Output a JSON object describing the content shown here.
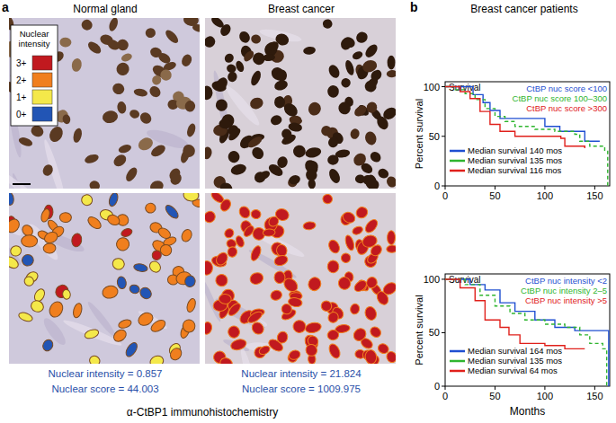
{
  "panel_a": {
    "label": "a",
    "columns": [
      "Normal gland",
      "Breast cancer"
    ],
    "legend_title": "Nuclear intensity",
    "legend": [
      {
        "label": "3+",
        "color": "#c1191f"
      },
      {
        "label": "2+",
        "color": "#f07f1e"
      },
      {
        "label": "1+",
        "color": "#f4e84a"
      },
      {
        "label": "0+",
        "color": "#2255b5"
      }
    ],
    "measurements": [
      [
        "Nuclear intensity = 0.857",
        "Nuclear score = 44.003"
      ],
      [
        "Nuclear intensity = 21.824",
        "Nuclear score = 1009.975"
      ]
    ],
    "caption": "α-CtBP1 immunohistochemistry"
  },
  "panel_b": {
    "label": "b",
    "title": "Breast cancer patients"
  },
  "chart_data": [
    {
      "type": "step",
      "title": "Survival",
      "y_label": "Percent survival",
      "xlim": [
        0,
        165
      ],
      "ylim": [
        0,
        105
      ],
      "xticks": [
        0,
        50,
        100,
        150
      ],
      "yticks": [
        0,
        50,
        100
      ],
      "series": [
        {
          "name": "CtBP nuc score <100",
          "color": "#1f4fd1",
          "line_style": "solid",
          "x": [
            0,
            28,
            38,
            45,
            55,
            100,
            115,
            140,
            155
          ],
          "values": [
            100,
            92,
            84,
            76,
            68,
            60,
            55,
            45,
            45
          ]
        },
        {
          "name": "CtBP nuc score 100–300",
          "color": "#2fb52f",
          "line_style": "dashed",
          "x": [
            0,
            10,
            20,
            30,
            40,
            50,
            60,
            70,
            90,
            110,
            130,
            135,
            145,
            160,
            163
          ],
          "values": [
            100,
            97,
            93,
            87,
            78,
            70,
            65,
            60,
            57,
            55,
            52,
            45,
            40,
            35,
            0
          ]
        },
        {
          "name": "CtBP nuc score >300",
          "color": "#e0201b",
          "line_style": "solid",
          "x": [
            0,
            15,
            25,
            35,
            45,
            55,
            70,
            116,
            120,
            140
          ],
          "values": [
            100,
            95,
            88,
            75,
            62,
            55,
            50,
            48,
            40,
            38
          ]
        }
      ],
      "annotations": [
        "Median survival 140 mos",
        "Median survival 135 mos",
        "Median survival 116 mos"
      ]
    },
    {
      "type": "step",
      "title": "Survival",
      "y_label": "Percent survival",
      "x_label": "Months",
      "xlim": [
        0,
        165
      ],
      "ylim": [
        0,
        105
      ],
      "xticks": [
        0,
        50,
        100,
        150
      ],
      "yticks": [
        0,
        50,
        100
      ],
      "series": [
        {
          "name": "CtBP nuc intensity <2",
          "color": "#1f4fd1",
          "line_style": "solid",
          "x": [
            0,
            25,
            40,
            55,
            70,
            90,
            110,
            130,
            164
          ],
          "values": [
            100,
            95,
            90,
            78,
            70,
            62,
            55,
            52,
            0
          ]
        },
        {
          "name": "CtBP nuc intensity 2–5",
          "color": "#2fb52f",
          "line_style": "dashed",
          "x": [
            0,
            20,
            35,
            50,
            65,
            80,
            100,
            120,
            135,
            145,
            158,
            162
          ],
          "values": [
            100,
            95,
            85,
            75,
            68,
            62,
            58,
            55,
            48,
            40,
            35,
            0
          ]
        },
        {
          "name": "CtBP nuc intensity >5",
          "color": "#e0201b",
          "line_style": "solid",
          "x": [
            0,
            15,
            30,
            40,
            55,
            64,
            75,
            100,
            120,
            140
          ],
          "values": [
            100,
            92,
            80,
            62,
            55,
            48,
            40,
            38,
            35,
            35
          ]
        }
      ],
      "annotations": [
        "Median survival 164 mos",
        "Median survival 135 mos",
        "Median survival 64 mos"
      ]
    }
  ]
}
